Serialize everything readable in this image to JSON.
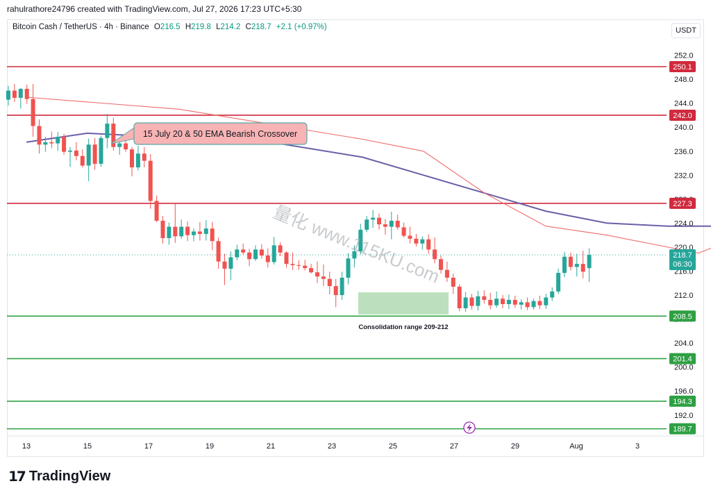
{
  "header": {
    "credit": "rahulrathore24796 created with TradingView.com, Jul 27, 2026 17:23 UTC+5:30",
    "symbol": "Bitcoin Cash / TetherUS · 4h · Binance",
    "ohlc": [
      {
        "label": "O",
        "value": "216.5"
      },
      {
        "label": "H",
        "value": "219.8"
      },
      {
        "label": "L",
        "value": "214.2"
      },
      {
        "label": "C",
        "value": "218.7"
      }
    ],
    "change": "+2.1 (+0.97%)",
    "currency": "USDT"
  },
  "footer": {
    "logo_text": "TradingView"
  },
  "watermark": "量化 www.115KU.com",
  "chart_data": {
    "type": "candlestick",
    "x_ticks": [
      "13",
      "15",
      "17",
      "19",
      "21",
      "23",
      "25",
      "27",
      "29",
      "Aug",
      "3"
    ],
    "y_ticks": [
      "252.0",
      "248.0",
      "244.0",
      "240.0",
      "236.0",
      "232.0",
      "228.0",
      "224.0",
      "220.0",
      "216.0",
      "212.0",
      "208.0",
      "204.0",
      "200.0",
      "196.0",
      "192.0"
    ],
    "ylim": [
      188.5,
      254.5
    ],
    "current_price": {
      "value": 218.7,
      "label": "218.7",
      "countdown": "06:30"
    },
    "levels": [
      {
        "value": 250.1,
        "label": "250.1",
        "type": "resistance"
      },
      {
        "value": 242.0,
        "label": "242.0",
        "type": "resistance"
      },
      {
        "value": 227.3,
        "label": "227.3",
        "type": "resistance"
      },
      {
        "value": 208.5,
        "label": "208.5",
        "type": "support"
      },
      {
        "value": 201.4,
        "label": "201.4",
        "type": "support"
      },
      {
        "value": 194.3,
        "label": "194.3",
        "type": "support"
      },
      {
        "value": 189.7,
        "label": "189.7",
        "type": "support"
      }
    ],
    "annotations": [
      {
        "text": "15 July 20 & 50 EMA Bearish Crossover"
      },
      {
        "text": "Consolidation range 209-212",
        "range": [
          209,
          212
        ]
      }
    ],
    "ema20": [
      [
        0,
        245
      ],
      [
        5,
        243
      ],
      [
        11,
        238
      ],
      [
        13,
        236
      ],
      [
        15,
        229
      ],
      [
        17,
        223.5
      ],
      [
        19,
        222
      ],
      [
        21,
        220
      ],
      [
        22,
        219
      ],
      [
        23,
        221
      ],
      [
        24,
        222.5
      ],
      [
        26,
        222.5
      ],
      [
        27,
        221
      ],
      [
        29,
        218
      ],
      [
        31,
        215
      ],
      [
        33,
        213.5
      ],
      [
        35,
        212.5
      ],
      [
        36,
        212.2
      ],
      [
        37,
        213
      ]
    ],
    "ema50": [
      [
        0,
        237.5
      ],
      [
        2,
        239
      ],
      [
        8,
        237.5
      ],
      [
        11,
        235
      ],
      [
        13,
        232
      ],
      [
        15,
        229
      ],
      [
        17,
        226
      ],
      [
        19,
        224
      ],
      [
        21,
        223.5
      ],
      [
        23,
        223.5
      ],
      [
        25,
        223.5
      ],
      [
        27,
        222
      ],
      [
        29,
        220.5
      ],
      [
        31,
        219
      ],
      [
        33,
        217.5
      ],
      [
        35,
        216.8
      ],
      [
        36,
        217.2
      ],
      [
        37,
        217.5
      ]
    ],
    "candles": [
      {
        "o": 244.6,
        "h": 246.9,
        "l": 243.6,
        "c": 246.1
      },
      {
        "o": 246.1,
        "h": 247.2,
        "l": 244.2,
        "c": 244.9
      },
      {
        "o": 244.9,
        "h": 246.5,
        "l": 243.1,
        "c": 246.4
      },
      {
        "o": 246.4,
        "h": 247.1,
        "l": 243.9,
        "c": 244.7
      },
      {
        "o": 244.7,
        "h": 247.2,
        "l": 238.4,
        "c": 240.2
      },
      {
        "o": 240.2,
        "h": 241.3,
        "l": 235.6,
        "c": 237.1
      },
      {
        "o": 237.1,
        "h": 238.4,
        "l": 235.9,
        "c": 237.5
      },
      {
        "o": 237.5,
        "h": 239.3,
        "l": 236.5,
        "c": 237.3
      },
      {
        "o": 237.3,
        "h": 239.2,
        "l": 236.1,
        "c": 238.4
      },
      {
        "o": 238.4,
        "h": 238.9,
        "l": 235.4,
        "c": 235.9
      },
      {
        "o": 235.9,
        "h": 236.7,
        "l": 233.4,
        "c": 236.1
      },
      {
        "o": 236.1,
        "h": 237.5,
        "l": 234.5,
        "c": 235.2
      },
      {
        "o": 235.2,
        "h": 236.3,
        "l": 233.3,
        "c": 233.6
      },
      {
        "o": 233.6,
        "h": 238.1,
        "l": 231.0,
        "c": 237.1
      },
      {
        "o": 237.1,
        "h": 238.2,
        "l": 232.9,
        "c": 233.9
      },
      {
        "o": 233.9,
        "h": 238.6,
        "l": 233.4,
        "c": 238.2
      },
      {
        "o": 238.2,
        "h": 242.2,
        "l": 236.5,
        "c": 240.6
      },
      {
        "o": 240.6,
        "h": 241.6,
        "l": 236.1,
        "c": 236.7
      },
      {
        "o": 236.7,
        "h": 238.2,
        "l": 235.4,
        "c": 237.3
      },
      {
        "o": 237.3,
        "h": 238.7,
        "l": 235.9,
        "c": 236.3
      },
      {
        "o": 236.3,
        "h": 236.7,
        "l": 231.8,
        "c": 233.3
      },
      {
        "o": 233.3,
        "h": 236.9,
        "l": 232.8,
        "c": 235.6
      },
      {
        "o": 235.6,
        "h": 236.7,
        "l": 233.3,
        "c": 234.4
      },
      {
        "o": 234.4,
        "h": 235.5,
        "l": 226.4,
        "c": 227.7
      },
      {
        "o": 227.7,
        "h": 228.6,
        "l": 224.2,
        "c": 224.4
      },
      {
        "o": 224.4,
        "h": 225.2,
        "l": 220.6,
        "c": 221.5
      },
      {
        "o": 221.5,
        "h": 224.1,
        "l": 220.4,
        "c": 223.4
      },
      {
        "o": 223.4,
        "h": 227.3,
        "l": 220.7,
        "c": 221.8
      },
      {
        "o": 221.8,
        "h": 224.6,
        "l": 221.4,
        "c": 223.4
      },
      {
        "o": 223.4,
        "h": 224.3,
        "l": 221.0,
        "c": 222.0
      },
      {
        "o": 222.0,
        "h": 223.1,
        "l": 221.0,
        "c": 222.6
      },
      {
        "o": 222.6,
        "h": 224.2,
        "l": 221.1,
        "c": 222.2
      },
      {
        "o": 222.2,
        "h": 224.5,
        "l": 221.1,
        "c": 223.1
      },
      {
        "o": 223.1,
        "h": 224.2,
        "l": 219.5,
        "c": 221.0
      },
      {
        "o": 221.0,
        "h": 221.6,
        "l": 216.4,
        "c": 217.6
      },
      {
        "o": 217.6,
        "h": 218.9,
        "l": 213.7,
        "c": 216.4
      },
      {
        "o": 216.4,
        "h": 219.3,
        "l": 214.5,
        "c": 218.3
      },
      {
        "o": 218.3,
        "h": 220.4,
        "l": 217.8,
        "c": 219.6
      },
      {
        "o": 219.6,
        "h": 220.6,
        "l": 218.7,
        "c": 219.1
      },
      {
        "o": 219.1,
        "h": 219.7,
        "l": 216.8,
        "c": 218.0
      },
      {
        "o": 218.0,
        "h": 220.3,
        "l": 217.7,
        "c": 219.6
      },
      {
        "o": 219.6,
        "h": 220.5,
        "l": 218.1,
        "c": 218.6
      },
      {
        "o": 218.6,
        "h": 219.8,
        "l": 216.6,
        "c": 217.5
      },
      {
        "o": 217.5,
        "h": 221.7,
        "l": 217.1,
        "c": 220.3
      },
      {
        "o": 220.3,
        "h": 220.8,
        "l": 218.5,
        "c": 219.1
      },
      {
        "o": 219.1,
        "h": 219.3,
        "l": 216.6,
        "c": 217.2
      },
      {
        "o": 217.2,
        "h": 219.1,
        "l": 216.2,
        "c": 217.0
      },
      {
        "o": 217.0,
        "h": 217.8,
        "l": 216.2,
        "c": 216.9
      },
      {
        "o": 216.9,
        "h": 217.9,
        "l": 216.1,
        "c": 216.5
      },
      {
        "o": 216.5,
        "h": 217.2,
        "l": 215.6,
        "c": 215.8
      },
      {
        "o": 215.8,
        "h": 217.6,
        "l": 214.0,
        "c": 215.1
      },
      {
        "o": 215.1,
        "h": 217.1,
        "l": 213.5,
        "c": 214.7
      },
      {
        "o": 214.7,
        "h": 215.9,
        "l": 212.1,
        "c": 213.5
      },
      {
        "o": 213.5,
        "h": 214.7,
        "l": 210.0,
        "c": 212.0
      },
      {
        "o": 212.0,
        "h": 215.9,
        "l": 211.2,
        "c": 214.9
      },
      {
        "o": 214.9,
        "h": 219.0,
        "l": 213.8,
        "c": 218.1
      },
      {
        "o": 218.1,
        "h": 220.3,
        "l": 216.6,
        "c": 219.3
      },
      {
        "o": 219.3,
        "h": 223.9,
        "l": 218.8,
        "c": 222.9
      },
      {
        "o": 222.9,
        "h": 225.2,
        "l": 222.5,
        "c": 224.6
      },
      {
        "o": 224.6,
        "h": 226.2,
        "l": 223.2,
        "c": 224.9
      },
      {
        "o": 224.9,
        "h": 225.6,
        "l": 222.9,
        "c": 223.8
      },
      {
        "o": 223.8,
        "h": 224.7,
        "l": 222.1,
        "c": 223.4
      },
      {
        "o": 223.4,
        "h": 225.9,
        "l": 221.3,
        "c": 224.4
      },
      {
        "o": 224.4,
        "h": 225.4,
        "l": 222.9,
        "c": 223.3
      },
      {
        "o": 223.3,
        "h": 224.1,
        "l": 221.6,
        "c": 221.9
      },
      {
        "o": 221.9,
        "h": 223.4,
        "l": 220.6,
        "c": 221.4
      },
      {
        "o": 221.4,
        "h": 222.2,
        "l": 220.1,
        "c": 220.6
      },
      {
        "o": 220.6,
        "h": 221.8,
        "l": 219.6,
        "c": 221.3
      },
      {
        "o": 221.3,
        "h": 222.1,
        "l": 218.9,
        "c": 219.6
      },
      {
        "o": 219.6,
        "h": 221.6,
        "l": 217.3,
        "c": 218.0
      },
      {
        "o": 218.0,
        "h": 218.6,
        "l": 215.6,
        "c": 216.2
      },
      {
        "o": 216.2,
        "h": 217.6,
        "l": 214.2,
        "c": 214.9
      },
      {
        "o": 214.9,
        "h": 215.6,
        "l": 212.2,
        "c": 213.4
      },
      {
        "o": 213.4,
        "h": 213.8,
        "l": 209.3,
        "c": 209.8
      },
      {
        "o": 209.8,
        "h": 212.5,
        "l": 209.2,
        "c": 211.6
      },
      {
        "o": 211.6,
        "h": 212.2,
        "l": 209.6,
        "c": 210.2
      },
      {
        "o": 210.2,
        "h": 212.7,
        "l": 209.4,
        "c": 211.8
      },
      {
        "o": 211.8,
        "h": 212.8,
        "l": 210.6,
        "c": 211.2
      },
      {
        "o": 211.2,
        "h": 212.4,
        "l": 209.6,
        "c": 210.3
      },
      {
        "o": 210.3,
        "h": 212.6,
        "l": 209.9,
        "c": 211.4
      },
      {
        "o": 211.4,
        "h": 212.0,
        "l": 209.8,
        "c": 210.5
      },
      {
        "o": 210.5,
        "h": 212.1,
        "l": 209.7,
        "c": 211.2
      },
      {
        "o": 211.2,
        "h": 211.9,
        "l": 209.9,
        "c": 210.4
      },
      {
        "o": 210.4,
        "h": 211.3,
        "l": 209.6,
        "c": 210.8
      },
      {
        "o": 210.8,
        "h": 211.6,
        "l": 209.5,
        "c": 210.0
      },
      {
        "o": 210.0,
        "h": 211.4,
        "l": 209.6,
        "c": 211.0
      },
      {
        "o": 211.0,
        "h": 211.9,
        "l": 209.7,
        "c": 210.3
      },
      {
        "o": 210.3,
        "h": 212.2,
        "l": 209.7,
        "c": 211.6
      },
      {
        "o": 211.6,
        "h": 213.3,
        "l": 211.0,
        "c": 212.6
      },
      {
        "o": 212.6,
        "h": 216.4,
        "l": 212.2,
        "c": 215.7
      },
      {
        "o": 215.7,
        "h": 219.2,
        "l": 215.0,
        "c": 218.4
      },
      {
        "o": 218.4,
        "h": 219.1,
        "l": 216.1,
        "c": 216.7
      },
      {
        "o": 216.7,
        "h": 218.9,
        "l": 215.1,
        "c": 217.2
      },
      {
        "o": 217.2,
        "h": 219.4,
        "l": 214.8,
        "c": 215.9
      },
      {
        "o": 216.5,
        "h": 219.8,
        "l": 214.2,
        "c": 218.7
      }
    ]
  }
}
